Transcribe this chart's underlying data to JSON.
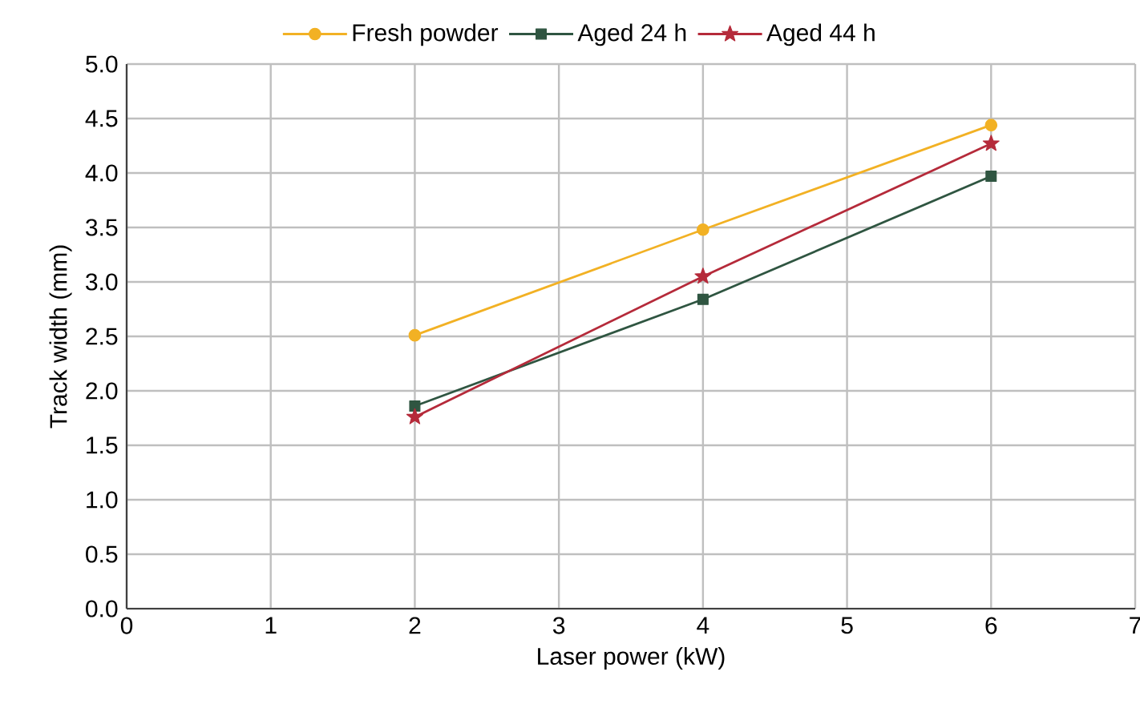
{
  "chart_data": {
    "type": "line",
    "xlabel": "Laser power (kW)",
    "ylabel": "Track width (mm)",
    "x": [
      2,
      4,
      6
    ],
    "series": [
      {
        "name": "Fresh powder",
        "color": "#f2b124",
        "marker": "circle",
        "values": [
          2.51,
          3.48,
          4.44
        ]
      },
      {
        "name": "Aged 24 h",
        "color": "#2f5541",
        "marker": "square",
        "values": [
          1.86,
          2.84,
          3.97
        ]
      },
      {
        "name": "Aged 44 h",
        "color": "#b52a3a",
        "marker": "star",
        "values": [
          1.76,
          3.05,
          4.27
        ]
      }
    ],
    "xlim": [
      0,
      7
    ],
    "xticks": [
      0,
      1,
      2,
      3,
      4,
      5,
      6,
      7
    ],
    "ylim": [
      0,
      5
    ],
    "yticks": [
      {
        "value": 0,
        "label": "0.0"
      },
      {
        "value": 0.5,
        "label": "0.5"
      },
      {
        "value": 1,
        "label": "1.0"
      },
      {
        "value": 1.5,
        "label": "1.5"
      },
      {
        "value": 2,
        "label": "2.0"
      },
      {
        "value": 2.5,
        "label": "2.5"
      },
      {
        "value": 3,
        "label": "3.0"
      },
      {
        "value": 3.5,
        "label": "3.5"
      },
      {
        "value": 4,
        "label": "4.0"
      },
      {
        "value": 4.5,
        "label": "4.5"
      },
      {
        "value": 5,
        "label": "5.0"
      }
    ],
    "grid": true,
    "legend": "top",
    "line_style": "solid"
  }
}
